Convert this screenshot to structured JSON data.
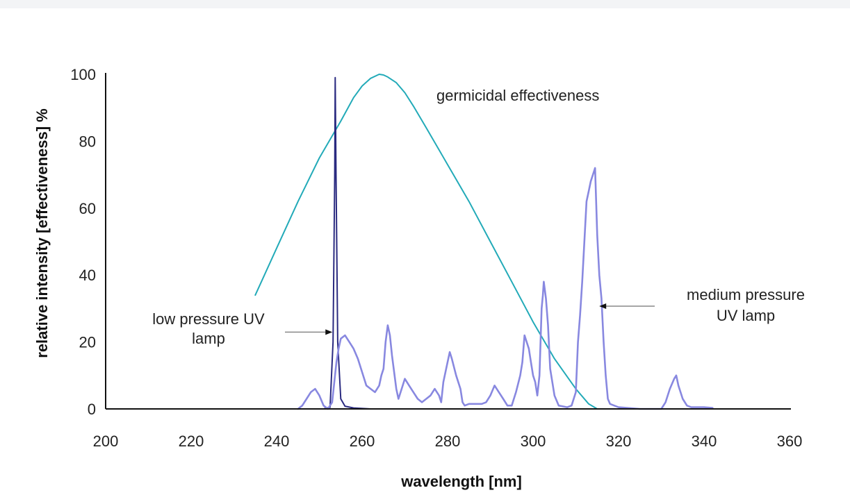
{
  "chart_data": {
    "type": "line",
    "title": "",
    "xlabel": "wavelength [nm]",
    "ylabel": "relative intensity [effectiveness] %",
    "xlim": [
      200,
      360
    ],
    "ylim": [
      0,
      100
    ],
    "x_ticks": [
      200,
      220,
      240,
      260,
      280,
      300,
      320,
      340,
      360
    ],
    "y_ticks": [
      0,
      20,
      40,
      60,
      80,
      100
    ],
    "grid": false,
    "legend": "none",
    "annotations": [
      {
        "text": "germicidal effectiveness",
        "target": "germicidal"
      },
      {
        "lines": [
          "low pressure UV",
          "lamp"
        ],
        "target": "low_pressure",
        "arrow_to": [
          253.7,
          24
        ]
      },
      {
        "lines": [
          "medium pressure",
          "UV lamp"
        ],
        "target": "medium_pressure",
        "arrow_to": [
          314.5,
          31
        ]
      }
    ],
    "series": [
      {
        "id": "germicidal",
        "color": "#22aab8",
        "points": [
          [
            235,
            34
          ],
          [
            240,
            48
          ],
          [
            245,
            62
          ],
          [
            250,
            75
          ],
          [
            255,
            86
          ],
          [
            258,
            93
          ],
          [
            260,
            96.5
          ],
          [
            262,
            98.8
          ],
          [
            264,
            100
          ],
          [
            265,
            99.8
          ],
          [
            266,
            99.2
          ],
          [
            268,
            97.5
          ],
          [
            270,
            94.5
          ],
          [
            272,
            90.5
          ],
          [
            275,
            84
          ],
          [
            280,
            73
          ],
          [
            285,
            62
          ],
          [
            290,
            50
          ],
          [
            295,
            38
          ],
          [
            300,
            26
          ],
          [
            305,
            15
          ],
          [
            310,
            6
          ],
          [
            313,
            1.5
          ],
          [
            315,
            0
          ]
        ]
      },
      {
        "id": "low_pressure",
        "color": "#2a2a80",
        "points": [
          [
            248,
            0
          ],
          [
            251,
            0
          ],
          [
            252.5,
            0.5
          ],
          [
            253.2,
            20
          ],
          [
            253.6,
            70
          ],
          [
            253.7,
            99
          ],
          [
            253.9,
            70
          ],
          [
            254.3,
            20
          ],
          [
            255,
            3
          ],
          [
            256,
            0.8
          ],
          [
            258,
            0.3
          ],
          [
            262,
            0
          ]
        ]
      },
      {
        "id": "medium_pressure",
        "color": "#8888e0",
        "points": [
          [
            245,
            0
          ],
          [
            246,
            1
          ],
          [
            247,
            3
          ],
          [
            248,
            5
          ],
          [
            249,
            6
          ],
          [
            250,
            4
          ],
          [
            251,
            1
          ],
          [
            252,
            0
          ],
          [
            253,
            2
          ],
          [
            254,
            14
          ],
          [
            254.5,
            18
          ],
          [
            255,
            21
          ],
          [
            256,
            22
          ],
          [
            257,
            20
          ],
          [
            258,
            18
          ],
          [
            259,
            15
          ],
          [
            260,
            11
          ],
          [
            261,
            7
          ],
          [
            262,
            6
          ],
          [
            263,
            5
          ],
          [
            264,
            7
          ],
          [
            264.5,
            10
          ],
          [
            265,
            12
          ],
          [
            265.5,
            20
          ],
          [
            266,
            25
          ],
          [
            266.5,
            22
          ],
          [
            267,
            16
          ],
          [
            268,
            6
          ],
          [
            268.5,
            3
          ],
          [
            269,
            5
          ],
          [
            270,
            9
          ],
          [
            271,
            7
          ],
          [
            272,
            5
          ],
          [
            273,
            3
          ],
          [
            274,
            2
          ],
          [
            275,
            3
          ],
          [
            276,
            4
          ],
          [
            277,
            6
          ],
          [
            278,
            4
          ],
          [
            278.5,
            2
          ],
          [
            279,
            8
          ],
          [
            280,
            14
          ],
          [
            280.5,
            17
          ],
          [
            281,
            15
          ],
          [
            282,
            10
          ],
          [
            283,
            6
          ],
          [
            283.5,
            2
          ],
          [
            284,
            1
          ],
          [
            285,
            1.5
          ],
          [
            288,
            1.5
          ],
          [
            289,
            2
          ],
          [
            290,
            4
          ],
          [
            291,
            7
          ],
          [
            292,
            5
          ],
          [
            293,
            3
          ],
          [
            294,
            1
          ],
          [
            295,
            1
          ],
          [
            296,
            5
          ],
          [
            297,
            10
          ],
          [
            297.5,
            14
          ],
          [
            298,
            22
          ],
          [
            298.5,
            20
          ],
          [
            299,
            18
          ],
          [
            299.5,
            14
          ],
          [
            300,
            10
          ],
          [
            300.5,
            8
          ],
          [
            301,
            4
          ],
          [
            301.5,
            10
          ],
          [
            302,
            30
          ],
          [
            302.3,
            34
          ],
          [
            302.5,
            38
          ],
          [
            303,
            33
          ],
          [
            303.5,
            25
          ],
          [
            304,
            12
          ],
          [
            304.5,
            8
          ],
          [
            305,
            4
          ],
          [
            306,
            1
          ],
          [
            308,
            0.5
          ],
          [
            309,
            1
          ],
          [
            310,
            5
          ],
          [
            310.5,
            20
          ],
          [
            311,
            28
          ],
          [
            311.5,
            38
          ],
          [
            312,
            50
          ],
          [
            312.5,
            62
          ],
          [
            313,
            65
          ],
          [
            313.5,
            68
          ],
          [
            314,
            70
          ],
          [
            314.5,
            72
          ],
          [
            315,
            52
          ],
          [
            315.5,
            40
          ],
          [
            316,
            33
          ],
          [
            316.5,
            20
          ],
          [
            317,
            10
          ],
          [
            317.5,
            3
          ],
          [
            318,
            1.5
          ],
          [
            320,
            0.5
          ],
          [
            325,
            0
          ],
          [
            330,
            0
          ],
          [
            331,
            2
          ],
          [
            332,
            6
          ],
          [
            333,
            9
          ],
          [
            333.5,
            10
          ],
          [
            334,
            7
          ],
          [
            335,
            3
          ],
          [
            336,
            1
          ],
          [
            337,
            0.5
          ],
          [
            340,
            0.5
          ],
          [
            342,
            0.3
          ]
        ]
      }
    ]
  }
}
